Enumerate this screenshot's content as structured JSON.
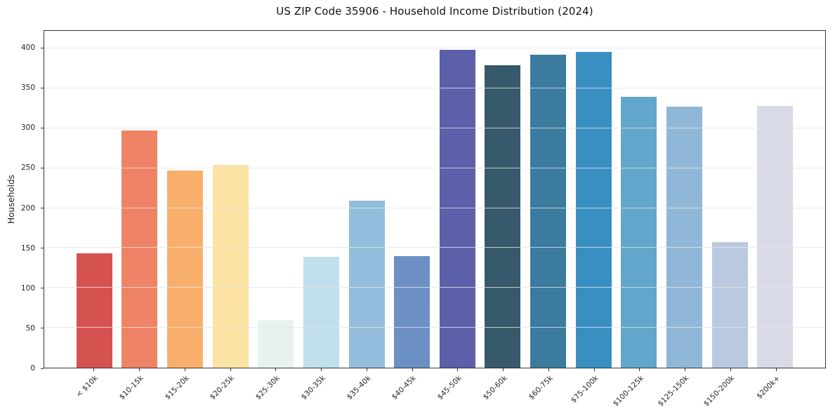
{
  "title": "US ZIP Code 35906 - Household Income Distribution (2024)",
  "chart_data": {
    "type": "bar",
    "title": "US ZIP Code 35906 - Household Income Distribution (2024)",
    "xlabel": "",
    "ylabel": "Households",
    "categories": [
      "< $10k",
      "$10-15k",
      "$15-20k",
      "$20-25k",
      "$25-30k",
      "$30-35k",
      "$35-40k",
      "$40-45k",
      "$45-50k",
      "$50-60k",
      "$60-75k",
      "$75-100k",
      "$100-125k",
      "$125-150k",
      "$150-200k",
      "$200k+"
    ],
    "values": [
      143,
      297,
      247,
      254,
      60,
      139,
      209,
      140,
      398,
      379,
      392,
      396,
      339,
      327,
      157,
      328
    ],
    "bar_colors": [
      "#d5534f",
      "#ef8366",
      "#f9af6c",
      "#fbe3a3",
      "#e8f3f0",
      "#c1dfec",
      "#92bddc",
      "#6c90c5",
      "#5c5fa9",
      "#36596b",
      "#3a7b9e",
      "#398fc2",
      "#62a6cb",
      "#90b7d8",
      "#bac9df",
      "#d9dae7"
    ],
    "yticks": [
      0,
      50,
      100,
      150,
      200,
      250,
      300,
      350,
      400
    ],
    "ylim": [
      0,
      422
    ],
    "grid": "horizontal",
    "legend": "none",
    "x_tick_rotation": 45,
    "background": "#ffffff",
    "text_color": "#262626",
    "grid_color": "#e5e5e5",
    "spine_color": "#333333"
  }
}
